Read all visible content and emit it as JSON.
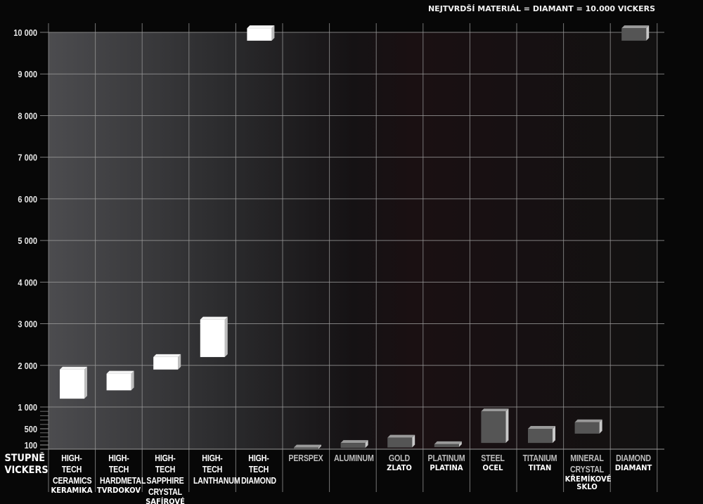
{
  "chart_data": {
    "type": "bar",
    "subtype": "floating-range",
    "annotation": "NEJTVRDŠÍ MATERIÁL = DIAMANT = 10.000 VICKERS",
    "ylabel": "STUPNĚ VICKERS",
    "y_scale": "piecewise (compressed below 1 000)",
    "ylim": [
      0,
      10000
    ],
    "y_ticks": [
      "100",
      "500",
      "1 000",
      "2 000",
      "3 000",
      "4 000",
      "5 000",
      "6 000",
      "7 000",
      "8 000",
      "9 000",
      "10 000"
    ],
    "y_tick_values": [
      100,
      500,
      1000,
      2000,
      3000,
      4000,
      5000,
      6000,
      7000,
      8000,
      9000,
      10000
    ],
    "grid": true,
    "colors": {
      "high_tech": "#ffffff",
      "conventional": "#555555",
      "grid": "#9a9a9a"
    },
    "categories": [
      {
        "en": "HIGH-TECH\nCERAMICS",
        "cz": "KERAMIKA",
        "group": "high_tech",
        "min": 1200,
        "max": 1900
      },
      {
        "en": "HIGH-TECH\nHARDMETAL",
        "cz": "TVRDOKOV",
        "group": "high_tech",
        "min": 1400,
        "max": 1800
      },
      {
        "en": "HIGH-TECH\nSAPPHIRE\nCRYSTAL",
        "cz": "SAFÍROVÉ\nSKLO",
        "group": "high_tech",
        "min": 1900,
        "max": 2200
      },
      {
        "en": "HIGH-TECH\nLANTHANUM",
        "cz": "",
        "group": "high_tech",
        "min": 2200,
        "max": 3100
      },
      {
        "en": "HIGH-TECH\nDIAMOND",
        "cz": "",
        "group": "high_tech",
        "min": 9800,
        "max": 10100
      },
      {
        "en": "PERSPEX",
        "cz": "",
        "group": "conventional",
        "min": 10,
        "max": 40
      },
      {
        "en": "ALUMINUM",
        "cz": "",
        "group": "conventional",
        "min": 30,
        "max": 150
      },
      {
        "en": "GOLD",
        "cz": "ZLATO",
        "group": "conventional",
        "min": 40,
        "max": 280
      },
      {
        "en": "PLATINUM",
        "cz": "PLATINA",
        "group": "conventional",
        "min": 50,
        "max": 120
      },
      {
        "en": "STEEL",
        "cz": "OCEL",
        "group": "conventional",
        "min": 150,
        "max": 900
      },
      {
        "en": "TITANIUM",
        "cz": "TITAN",
        "group": "conventional",
        "min": 150,
        "max": 500
      },
      {
        "en": "MINERAL\nCRYSTAL",
        "cz": "KŘEMÍKOVÉ\nSKLO",
        "group": "conventional",
        "min": 380,
        "max": 650
      },
      {
        "en": "DIAMOND",
        "cz": "DIAMANT",
        "group": "conventional",
        "min": 9800,
        "max": 10100
      }
    ]
  }
}
